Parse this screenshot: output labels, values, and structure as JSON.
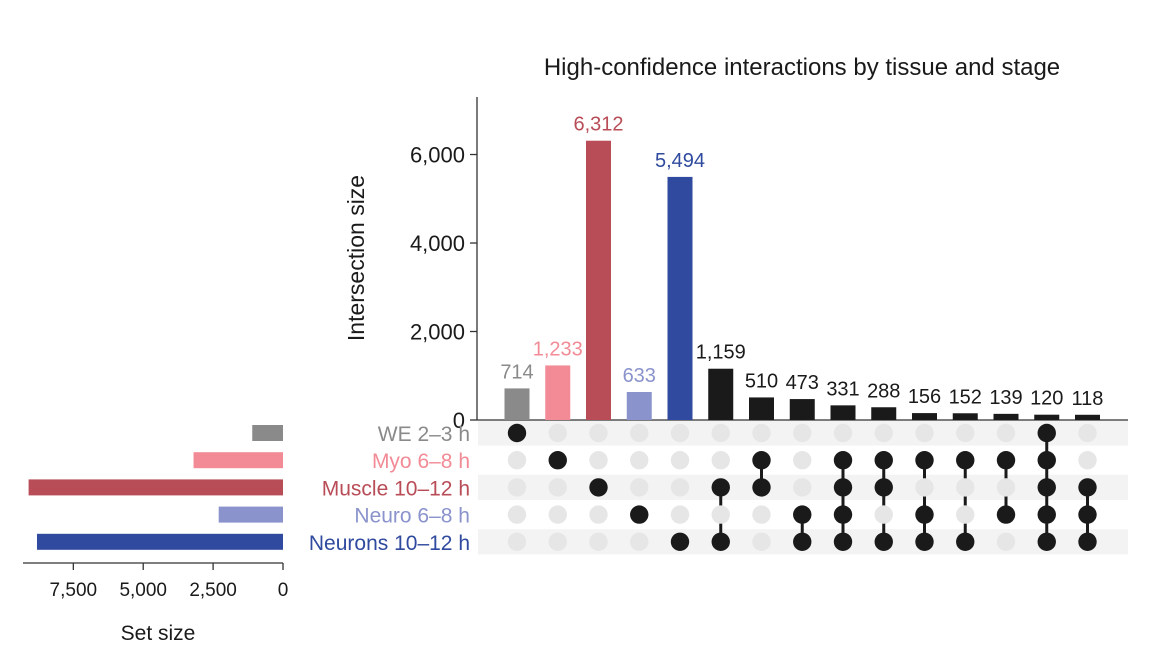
{
  "chart_data": {
    "type": "upset",
    "title": "High-confidence interactions by tissue and stage",
    "ylabel": "Intersection size",
    "ylim": [
      0,
      7300
    ],
    "yticks": [
      0,
      2000,
      4000,
      6000
    ],
    "ytick_labels": [
      "0",
      "2,000",
      "4,000",
      "6,000"
    ],
    "sets": [
      {
        "name": "WE 2–3 h",
        "color": "#8a8a8a",
        "size": 1100
      },
      {
        "name": "Myo 6–8 h",
        "color": "#f28b96",
        "size": 3200
      },
      {
        "name": "Muscle 10–12 h",
        "color": "#b84c57",
        "size": 9100
      },
      {
        "name": "Neuro 6–8 h",
        "color": "#8a93cc",
        "size": 2300
      },
      {
        "name": "Neurons 10–12 h",
        "color": "#2f4a9e",
        "size": 8800
      }
    ],
    "intersections": [
      {
        "value": 714,
        "label": "714",
        "color": "#8a8a8a",
        "members": [
          0
        ]
      },
      {
        "value": 1233,
        "label": "1,233",
        "color": "#f28b96",
        "members": [
          1
        ]
      },
      {
        "value": 6312,
        "label": "6,312",
        "color": "#b84c57",
        "members": [
          2
        ]
      },
      {
        "value": 633,
        "label": "633",
        "color": "#8a93cc",
        "members": [
          3
        ]
      },
      {
        "value": 5494,
        "label": "5,494",
        "color": "#2f4a9e",
        "members": [
          4
        ]
      },
      {
        "value": 1159,
        "label": "1,159",
        "color": "#1a1a1a",
        "members": [
          2,
          4
        ]
      },
      {
        "value": 510,
        "label": "510",
        "color": "#1a1a1a",
        "members": [
          1,
          2
        ]
      },
      {
        "value": 473,
        "label": "473",
        "color": "#1a1a1a",
        "members": [
          3,
          4
        ]
      },
      {
        "value": 331,
        "label": "331",
        "color": "#1a1a1a",
        "members": [
          1,
          2,
          3,
          4
        ]
      },
      {
        "value": 288,
        "label": "288",
        "color": "#1a1a1a",
        "members": [
          1,
          2,
          4
        ]
      },
      {
        "value": 156,
        "label": "156",
        "color": "#1a1a1a",
        "members": [
          1,
          3,
          4
        ]
      },
      {
        "value": 152,
        "label": "152",
        "color": "#1a1a1a",
        "members": [
          1,
          4
        ]
      },
      {
        "value": 139,
        "label": "139",
        "color": "#1a1a1a",
        "members": [
          1,
          3
        ]
      },
      {
        "value": 120,
        "label": "120",
        "color": "#1a1a1a",
        "members": [
          0,
          1,
          2,
          3,
          4
        ]
      },
      {
        "value": 118,
        "label": "118",
        "color": "#1a1a1a",
        "members": [
          2,
          3,
          4
        ]
      }
    ],
    "set_size_axis": {
      "label": "Set size",
      "xlim": [
        9300,
        0
      ],
      "ticks": [
        7500,
        5000,
        2500,
        0
      ],
      "tick_labels": [
        "7,500",
        "5,000",
        "2,500",
        "0"
      ]
    },
    "colors": {
      "inactive_dot": "#e6e6e6",
      "matrix_band": "#f3f3f3",
      "active_dot": "#1a1a1a",
      "axis": "#333333"
    }
  }
}
